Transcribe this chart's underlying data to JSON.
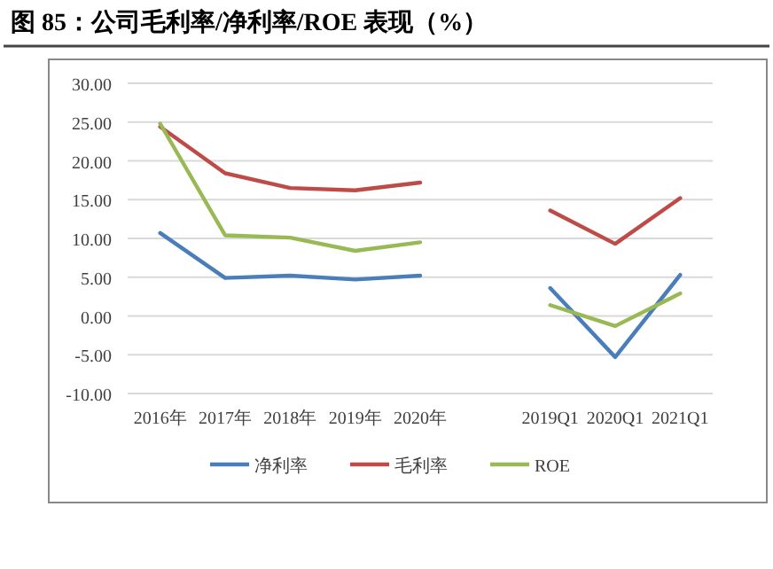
{
  "chart_data": {
    "type": "line",
    "title": "图 85：公司毛利率/净利率/ROE 表现（%）",
    "categories": [
      "2016年",
      "2017年",
      "2018年",
      "2019年",
      "2020年",
      null,
      "2019Q1",
      "2020Q1",
      "2021Q1"
    ],
    "series": [
      {
        "name": "净利率",
        "color": "#4a7ebb",
        "values": [
          10.7,
          4.9,
          5.2,
          4.7,
          5.2,
          null,
          3.6,
          -5.3,
          5.3
        ]
      },
      {
        "name": "毛利率",
        "color": "#be4b48",
        "values": [
          24.4,
          18.4,
          16.5,
          16.2,
          17.2,
          null,
          13.6,
          9.3,
          15.2
        ]
      },
      {
        "name": "ROE",
        "color": "#98b954",
        "values": [
          24.8,
          10.4,
          10.1,
          8.4,
          9.5,
          null,
          1.4,
          -1.3,
          2.9
        ]
      }
    ],
    "ylim": [
      -10,
      30
    ],
    "yticks": [
      {
        "value": -10,
        "label": "-10.00"
      },
      {
        "value": -5,
        "label": "-5.00"
      },
      {
        "value": 0,
        "label": "0.00"
      },
      {
        "value": 5,
        "label": "5.00"
      },
      {
        "value": 10,
        "label": "10.00"
      },
      {
        "value": 15,
        "label": "15.00"
      },
      {
        "value": 20,
        "label": "20.00"
      },
      {
        "value": 25,
        "label": "25.00"
      },
      {
        "value": 30,
        "label": "30.00"
      }
    ],
    "grid": "y",
    "legend": "bottom",
    "marker": "none",
    "line_style": "solid"
  }
}
